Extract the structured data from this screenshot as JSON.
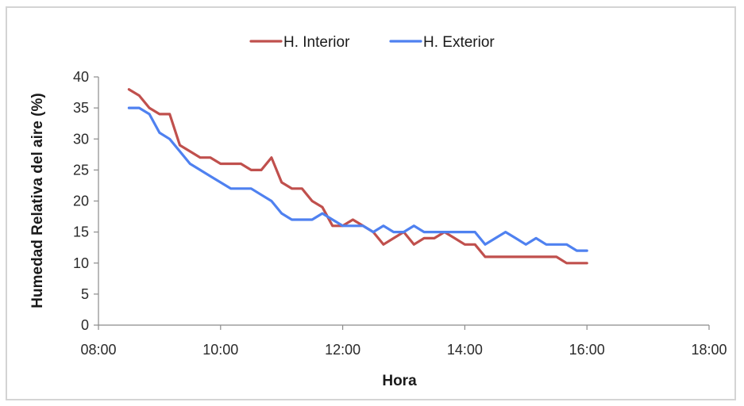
{
  "chart_data": {
    "type": "line",
    "xlabel": "Hora",
    "ylabel": "Humedad Relativa del aire (%)",
    "xlim": [
      "08:00",
      "18:00"
    ],
    "ylim": [
      0,
      40
    ],
    "x_ticks": [
      "08:00",
      "10:00",
      "12:00",
      "14:00",
      "16:00",
      "18:00"
    ],
    "y_ticks": [
      0,
      5,
      10,
      15,
      20,
      25,
      30,
      35,
      40
    ],
    "grid": false,
    "legend_position": "top",
    "series": [
      {
        "name": "H. Interior",
        "color": "#c0504d",
        "points": [
          [
            "08:30",
            38
          ],
          [
            "08:40",
            37
          ],
          [
            "08:50",
            35
          ],
          [
            "09:00",
            34
          ],
          [
            "09:10",
            34
          ],
          [
            "09:20",
            29
          ],
          [
            "09:30",
            28
          ],
          [
            "09:40",
            27
          ],
          [
            "09:50",
            27
          ],
          [
            "10:00",
            26
          ],
          [
            "10:10",
            26
          ],
          [
            "10:20",
            26
          ],
          [
            "10:30",
            25
          ],
          [
            "10:40",
            25
          ],
          [
            "10:50",
            27
          ],
          [
            "11:00",
            23
          ],
          [
            "11:10",
            22
          ],
          [
            "11:20",
            22
          ],
          [
            "11:30",
            20
          ],
          [
            "11:40",
            19
          ],
          [
            "11:50",
            16
          ],
          [
            "12:00",
            16
          ],
          [
            "12:10",
            17
          ],
          [
            "12:20",
            16
          ],
          [
            "12:30",
            15
          ],
          [
            "12:40",
            13
          ],
          [
            "12:50",
            14
          ],
          [
            "13:00",
            15
          ],
          [
            "13:10",
            13
          ],
          [
            "13:20",
            14
          ],
          [
            "13:30",
            14
          ],
          [
            "13:40",
            15
          ],
          [
            "13:50",
            14
          ],
          [
            "14:00",
            13
          ],
          [
            "14:10",
            13
          ],
          [
            "14:20",
            11
          ],
          [
            "14:30",
            11
          ],
          [
            "14:40",
            11
          ],
          [
            "14:50",
            11
          ],
          [
            "15:00",
            11
          ],
          [
            "15:10",
            11
          ],
          [
            "15:20",
            11
          ],
          [
            "15:30",
            11
          ],
          [
            "15:40",
            10
          ],
          [
            "15:50",
            10
          ],
          [
            "16:00",
            10
          ]
        ]
      },
      {
        "name": "H. Exterior",
        "color": "#4f81f0",
        "points": [
          [
            "08:30",
            35
          ],
          [
            "08:40",
            35
          ],
          [
            "08:50",
            34
          ],
          [
            "09:00",
            31
          ],
          [
            "09:10",
            30
          ],
          [
            "09:20",
            28
          ],
          [
            "09:30",
            26
          ],
          [
            "09:40",
            25
          ],
          [
            "09:50",
            24
          ],
          [
            "10:00",
            23
          ],
          [
            "10:10",
            22
          ],
          [
            "10:20",
            22
          ],
          [
            "10:30",
            22
          ],
          [
            "10:40",
            21
          ],
          [
            "10:50",
            20
          ],
          [
            "11:00",
            18
          ],
          [
            "11:10",
            17
          ],
          [
            "11:20",
            17
          ],
          [
            "11:30",
            17
          ],
          [
            "11:40",
            18
          ],
          [
            "11:50",
            17
          ],
          [
            "12:00",
            16
          ],
          [
            "12:10",
            16
          ],
          [
            "12:20",
            16
          ],
          [
            "12:30",
            15
          ],
          [
            "12:40",
            16
          ],
          [
            "12:50",
            15
          ],
          [
            "13:00",
            15
          ],
          [
            "13:10",
            16
          ],
          [
            "13:20",
            15
          ],
          [
            "13:30",
            15
          ],
          [
            "13:40",
            15
          ],
          [
            "13:50",
            15
          ],
          [
            "14:00",
            15
          ],
          [
            "14:10",
            15
          ],
          [
            "14:20",
            13
          ],
          [
            "14:30",
            14
          ],
          [
            "14:40",
            15
          ],
          [
            "14:50",
            14
          ],
          [
            "15:00",
            13
          ],
          [
            "15:10",
            14
          ],
          [
            "15:20",
            13
          ],
          [
            "15:30",
            13
          ],
          [
            "15:40",
            13
          ],
          [
            "15:50",
            12
          ],
          [
            "16:00",
            12
          ]
        ]
      }
    ]
  }
}
